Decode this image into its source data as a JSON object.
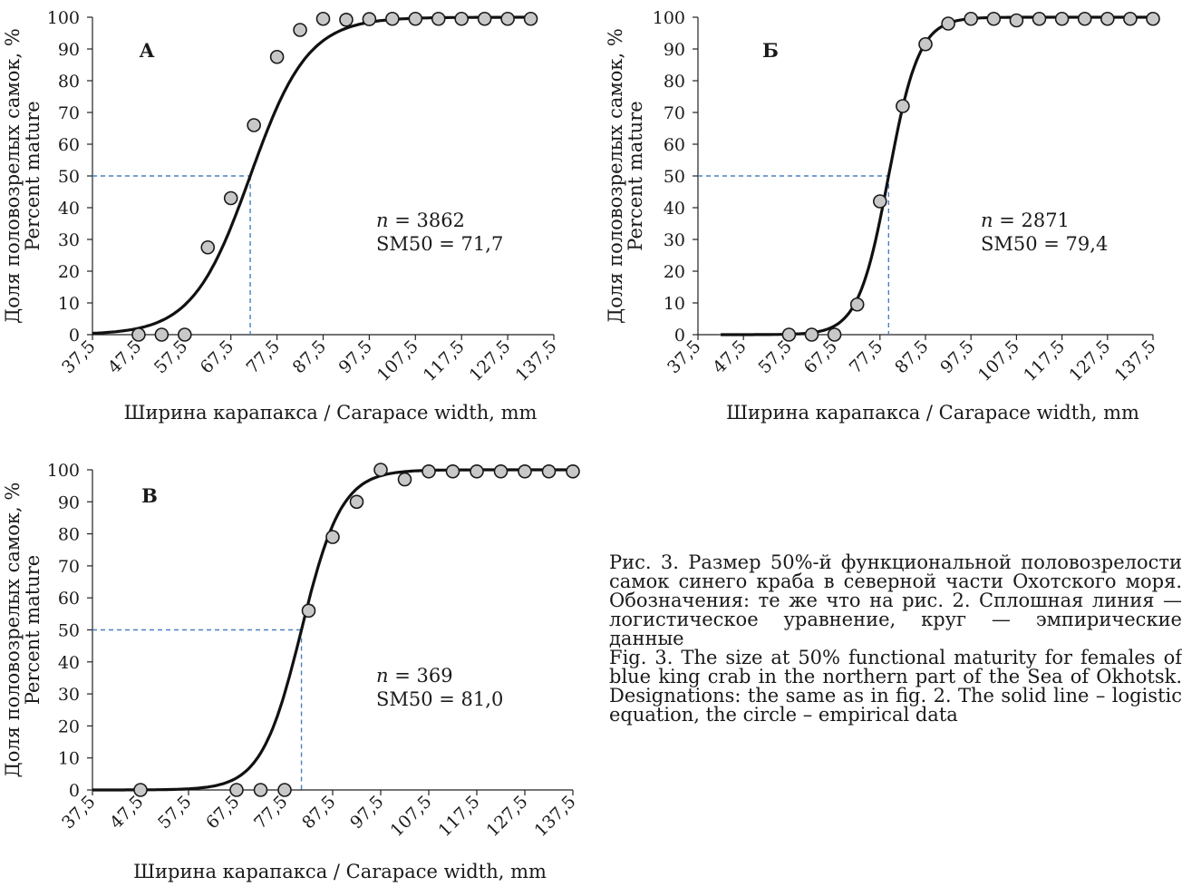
{
  "caption": {
    "ru": "Рис. 3. Размер 50%-й функциональной половозрелости самок синего краба в северной части Охотского моря. Обозначения: те же что на рис. 2. Сплошная линия — логистическое уравнение, круг — эмпирические данные",
    "en": "Fig. 3. The size at 50% functional maturity for females of blue king crab in the northern part of the Sea of Okhotsk. Designations: the same as in fig. 2. The solid line – logistic equation, the circle – empirical data"
  },
  "chart_data": [
    {
      "type": "scatter",
      "panel_label": "А",
      "xlabel": "Ширина карапакса  /  Carapace width, mm",
      "ylabel_ru": "Доля половозрелых самок, %",
      "ylabel_en": "Percent mature",
      "x_ticks": [
        "37,5",
        "47,5",
        "57,5",
        "67,5",
        "77,5",
        "87,5",
        "97,5",
        "107,5",
        "117,5",
        "127,5",
        "137,5"
      ],
      "y_ticks": [
        "0",
        "10",
        "20",
        "30",
        "40",
        "50",
        "60",
        "70",
        "80",
        "90",
        "100"
      ],
      "xlim": [
        37.5,
        137.5
      ],
      "ylim": [
        0,
        100
      ],
      "n_label": "n",
      "n_value": "= 3862",
      "sm50_label": "SM50 = 71,7",
      "sm50": 71.7,
      "points": {
        "x": [
          47.5,
          52.5,
          57.5,
          62.5,
          67.5,
          72.5,
          77.5,
          82.5,
          87.5,
          92.5,
          97.5,
          102.5,
          107.5,
          112.5,
          117.5,
          122.5,
          127.5,
          132.5
        ],
        "y": [
          0,
          0,
          0,
          27.5,
          43,
          66,
          87.5,
          96,
          99.5,
          99.2,
          99.4,
          99.5,
          99.5,
          99.5,
          99.5,
          99.5,
          99.5,
          99.5
        ]
      },
      "curve": {
        "x_start": 37.5,
        "x_end": 132.5,
        "slope": 0.16
      }
    },
    {
      "type": "scatter",
      "panel_label": "Б",
      "xlabel": "Ширина карапакса  /  Carapace width, mm",
      "ylabel_ru": "Доля половозрелых самок, %",
      "ylabel_en": "Percent mature",
      "x_ticks": [
        "37,5",
        "47,5",
        "57,5",
        "67,5",
        "77,5",
        "87,5",
        "97,5",
        "107,5",
        "117,5",
        "127,5",
        "137,5"
      ],
      "y_ticks": [
        "0",
        "10",
        "20",
        "30",
        "40",
        "50",
        "60",
        "70",
        "80",
        "90",
        "100"
      ],
      "xlim": [
        37.5,
        137.5
      ],
      "ylim": [
        0,
        100
      ],
      "n_label": "n",
      "n_value": "= 2871",
      "sm50_label": "SM50 = 79,4",
      "sm50": 79.4,
      "points": {
        "x": [
          57.5,
          62.5,
          67.5,
          72.5,
          77.5,
          82.5,
          87.5,
          92.5,
          97.5,
          102.5,
          107.5,
          112.5,
          117.5,
          122.5,
          127.5,
          132.5,
          137.5
        ],
        "y": [
          0,
          0,
          0,
          9.5,
          42,
          72,
          91.5,
          98,
          99.5,
          99.5,
          99,
          99.5,
          99.5,
          99.5,
          99.5,
          99.5,
          99.5
        ]
      },
      "curve": {
        "x_start": 42.5,
        "x_end": 137.5,
        "slope": 0.3
      }
    },
    {
      "type": "scatter",
      "panel_label": "В",
      "xlabel": "Ширина карапакса  /  Carapace width, mm",
      "ylabel_ru": "Доля половозрелых самок, %",
      "ylabel_en": "Percent mature",
      "x_ticks": [
        "37,5",
        "47,5",
        "57,5",
        "67,5",
        "77,5",
        "87,5",
        "97,5",
        "107,5",
        "117,5",
        "127,5",
        "137,5"
      ],
      "y_ticks": [
        "0",
        "10",
        "20",
        "30",
        "40",
        "50",
        "60",
        "70",
        "80",
        "90",
        "100"
      ],
      "xlim": [
        37.5,
        137.5
      ],
      "ylim": [
        0,
        100
      ],
      "n_label": "n",
      "n_value": "= 369",
      "sm50_label": "SM50 = 81,0",
      "sm50": 81.0,
      "points": {
        "x": [
          47.5,
          67.5,
          72.5,
          77.5,
          82.5,
          87.5,
          92.5,
          97.5,
          102.5,
          107.5,
          112.5,
          117.5,
          122.5,
          127.5,
          132.5,
          137.5
        ],
        "y": [
          0,
          0,
          0,
          0,
          56,
          79,
          90,
          100,
          97,
          99.5,
          99.5,
          99.5,
          99.5,
          99.5,
          99.5,
          99.5
        ]
      },
      "curve": {
        "x_start": 37.5,
        "x_end": 137.5,
        "slope": 0.24
      }
    }
  ]
}
